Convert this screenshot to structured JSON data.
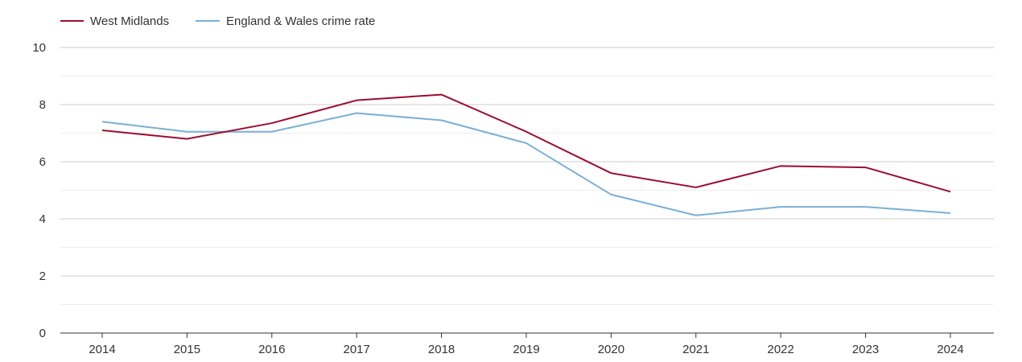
{
  "chart_data": {
    "type": "line",
    "title": "",
    "xlabel": "",
    "ylabel": "",
    "x": [
      "2014",
      "2015",
      "2016",
      "2017",
      "2018",
      "2019",
      "2020",
      "2021",
      "2022",
      "2023",
      "2024"
    ],
    "ylim": [
      0,
      10
    ],
    "yticks": [
      "0",
      "2",
      "4",
      "6",
      "8",
      "10"
    ],
    "grid": true,
    "legend_position": "top-left",
    "series": [
      {
        "name": "West Midlands",
        "color": "#9b0d2f",
        "values": [
          7.1,
          6.8,
          7.35,
          8.15,
          8.35,
          7.05,
          5.6,
          5.1,
          5.85,
          5.8,
          4.95
        ]
      },
      {
        "name": "England & Wales crime rate",
        "color": "#7bafd4",
        "values": [
          7.4,
          7.05,
          7.05,
          7.7,
          7.45,
          6.65,
          4.85,
          4.12,
          4.42,
          4.42,
          4.2
        ]
      }
    ]
  }
}
